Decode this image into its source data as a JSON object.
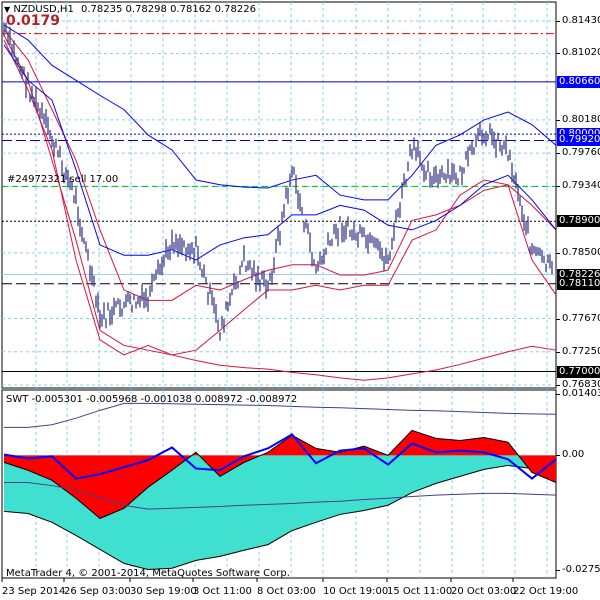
{
  "header": {
    "symbol": "NZDUSD,H1",
    "ohlc": "0.78235 0.78298 0.78162 0.78226",
    "menu_icon": "triangle-down-icon"
  },
  "profit_label": "0.0179",
  "order_label": "#24972321 sell 17.00",
  "indicator_label": "SWT -0.005301 -0.005968 -0.001038 0.008972 -0.008972",
  "copyright": "MetaTrader 4, © 2001-2014, MetaQuotes Software Corp.",
  "price_axis": [
    "0.81430",
    "0.81020",
    "0.80180",
    "0.79760",
    "0.79340",
    "0.78500",
    "0.77670",
    "0.77250",
    "0.76830"
  ],
  "sub_axis": {
    "top": "0.014035",
    "zero": "0.00",
    "bottom": "-0.027578"
  },
  "price_tags": [
    {
      "text": "0.80660",
      "price": 0.8066,
      "bg": "#0000ff",
      "fg": "#ffffff",
      "line": "solid",
      "color": "#0000cc"
    },
    {
      "text": "0.80000",
      "price": 0.8,
      "bg": "#0000ff",
      "fg": "#ffffff",
      "line": "dotted",
      "color": "#0000cc"
    },
    {
      "text": "0.79920",
      "price": 0.7992,
      "bg": "#0000ff",
      "fg": "#ffffff",
      "line": "longdash",
      "color": "#0000cc"
    },
    {
      "text": "0.78900",
      "price": 0.789,
      "bg": "#000000",
      "fg": "#ffffff",
      "line": "dotted",
      "color": "#000000"
    },
    {
      "text": "0.78226",
      "price": 0.78226,
      "bg": "#000000",
      "fg": "#ffffff",
      "line": "solid",
      "color": "#a6caf0"
    },
    {
      "text": "0.78110",
      "price": 0.7811,
      "bg": "#000000",
      "fg": "#ffffff",
      "line": "longdash",
      "color": "#000000"
    },
    {
      "text": "0.77000",
      "price": 0.77,
      "bg": "#000000",
      "fg": "#ffffff",
      "line": "solid",
      "color": "#000000"
    }
  ],
  "time_axis": [
    "23 Sep 2014",
    "26 Sep 03:00",
    "30 Sep 19:00",
    "3 Oct 11:00",
    "8 Oct 03:00",
    "10 Oct 19:00",
    "15 Oct 11:00",
    "20 Oct 03:00",
    "22 Oct 19:00"
  ],
  "chart_data": [
    {
      "type": "line",
      "title": "NZDUSD,H1",
      "ylim": [
        0.7683,
        0.8143
      ],
      "grid": true,
      "price": [
        0.8132,
        0.8062,
        0.7993,
        0.7917,
        0.7765,
        0.7784,
        0.779,
        0.7866,
        0.7854,
        0.7752,
        0.7841,
        0.7803,
        0.7955,
        0.7828,
        0.7885,
        0.7866,
        0.7841,
        0.798,
        0.7942,
        0.7948,
        0.8005,
        0.798,
        0.7854,
        0.7822
      ],
      "band_upper": [
        0.8138,
        0.8119,
        0.8087,
        0.8068,
        0.8049,
        0.8031,
        0.7999,
        0.798,
        0.7942,
        0.7936,
        0.7933,
        0.7932,
        0.7942,
        0.7948,
        0.7923,
        0.7917,
        0.7917,
        0.7948,
        0.7986,
        0.7999,
        0.8018,
        0.8028,
        0.8012,
        0.7986
      ],
      "band_lower": [
        0.8113,
        0.8068,
        0.8043,
        0.7955,
        0.786,
        0.7847,
        0.7847,
        0.7854,
        0.7841,
        0.786,
        0.7869,
        0.7873,
        0.7898,
        0.7898,
        0.791,
        0.7904,
        0.7885,
        0.7879,
        0.7891,
        0.791,
        0.7936,
        0.7948,
        0.7917,
        0.7879
      ],
      "ma_upper": [
        0.8132,
        0.8094,
        0.8031,
        0.7967,
        0.7879,
        0.7803,
        0.779,
        0.779,
        0.7809,
        0.7803,
        0.7816,
        0.7828,
        0.7835,
        0.7835,
        0.7822,
        0.7822,
        0.7828,
        0.7891,
        0.7898,
        0.791,
        0.7929,
        0.7936,
        0.791,
        0.7879
      ],
      "ma_lower": [
        0.8119,
        0.8056,
        0.798,
        0.7841,
        0.774,
        0.7721,
        0.7733,
        0.7721,
        0.7727,
        0.7752,
        0.7778,
        0.7803,
        0.7803,
        0.7809,
        0.7803,
        0.7809,
        0.7809,
        0.7866,
        0.7879,
        0.7923,
        0.7942,
        0.7936,
        0.7841,
        0.7797
      ],
      "ma_long": [
        0.8125,
        0.8068,
        0.7967,
        0.7866,
        0.7752,
        0.7733,
        0.7727,
        0.7721,
        0.7714,
        0.7708,
        0.7705,
        0.7703,
        0.7699,
        0.7696,
        0.7692,
        0.7689,
        0.7692,
        0.7697,
        0.7702,
        0.7709,
        0.7717,
        0.7725,
        0.7732,
        0.7727
      ],
      "levels": {
        "red_dashdot": 0.8127,
        "green_dash": 0.7934
      },
      "colors": {
        "price": "#3c3c8c",
        "band": "#0000ff",
        "ma": "#dc143c",
        "grid": "#87cefa"
      }
    },
    {
      "type": "area",
      "title": "SWT",
      "ylim": [
        -0.027578,
        0.014035
      ],
      "fast": [
        -0.0016,
        -0.0034,
        -0.0057,
        -0.0098,
        -0.0144,
        -0.0121,
        -0.0073,
        -0.0034,
        0.0007,
        -0.0048,
        -0.0016,
        0.0007,
        0.0046,
        0.0016,
        0.0007,
        0.0021,
        0.0,
        0.0057,
        0.0039,
        0.0034,
        0.0041,
        0.003,
        -0.0039,
        -0.0062
      ],
      "slow": [
        -0.0128,
        -0.0133,
        -0.0153,
        -0.0183,
        -0.0215,
        -0.0247,
        -0.0261,
        -0.0258,
        -0.024,
        -0.0231,
        -0.0217,
        -0.0204,
        -0.0172,
        -0.0153,
        -0.0135,
        -0.0126,
        -0.0114,
        -0.0085,
        -0.0064,
        -0.0048,
        -0.0032,
        -0.0023,
        -0.003,
        -0.0053
      ],
      "signal": [
        0.0002,
        -0.0007,
        -0.0002,
        -0.0053,
        -0.0043,
        -0.0027,
        -0.0011,
        0.0018,
        -0.003,
        -0.0034,
        -0.0002,
        0.0016,
        0.0048,
        -0.0018,
        0.0011,
        0.0016,
        -0.0021,
        0.0027,
        0.0007,
        0.0011,
        0.0007,
        -0.0009,
        -0.0053,
        -0.0009
      ],
      "upper": [
        0.0064,
        0.0064,
        0.007,
        0.0085,
        0.0103,
        0.0119,
        0.0119,
        0.0118,
        0.0117,
        0.0116,
        0.0115,
        0.0114,
        0.0112,
        0.011,
        0.0109,
        0.0107,
        0.0105,
        0.0103,
        0.0102,
        0.01,
        0.0098,
        0.0096,
        0.0095,
        0.0094
      ],
      "lower": [
        -0.0062,
        -0.0062,
        -0.0069,
        -0.008,
        -0.0096,
        -0.0114,
        -0.0123,
        -0.0121,
        -0.0119,
        -0.0117,
        -0.0114,
        -0.0112,
        -0.011,
        -0.0107,
        -0.0105,
        -0.0101,
        -0.0098,
        -0.0094,
        -0.0091,
        -0.0089,
        -0.0087,
        -0.0087,
        -0.0089,
        -0.0091
      ],
      "colors": {
        "fast": "#ff0000",
        "slow": "#40e0d0",
        "signal": "#0000ff",
        "bands": "#483d8b"
      }
    }
  ]
}
